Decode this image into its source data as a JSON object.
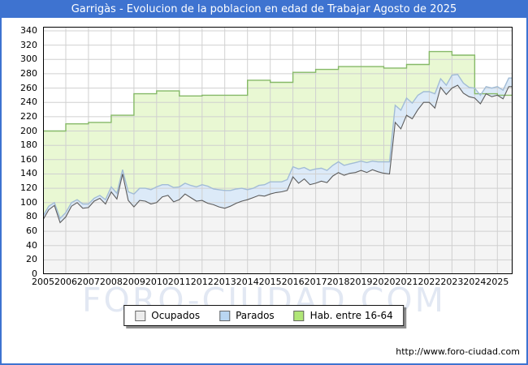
{
  "window": {
    "title": "Garrigàs - Evolucion de la poblacion en edad de Trabajar Agosto de 2025",
    "titlebar_color": "#3e73d0",
    "border_color": "#3e73d0"
  },
  "watermark": "FORO-CIUDAD.COM",
  "watermark_color": "#e2e8f3",
  "footer": {
    "url": "http://www.foro-ciudad.com"
  },
  "legend": {
    "items": [
      {
        "label": "Ocupados",
        "swatch": "#ededed"
      },
      {
        "label": "Parados",
        "swatch": "#b9d6f2"
      },
      {
        "label": "Hab. entre 16-64",
        "swatch": "#b0e677"
      }
    ]
  },
  "chart_data": {
    "type": "area",
    "title": "Garrigàs - Evolucion de la poblacion en edad de Trabajar Agosto de 2025",
    "x_axis": {
      "range": [
        2005,
        2025.667
      ],
      "ticks": [
        2005,
        2006,
        2007,
        2008,
        2009,
        2010,
        2011,
        2012,
        2013,
        2014,
        2015,
        2016,
        2017,
        2018,
        2019,
        2020,
        2021,
        2022,
        2023,
        2024,
        2025
      ]
    },
    "y_axis": {
      "min": 0,
      "max": 340,
      "step": 20,
      "ticks": [
        0,
        20,
        40,
        60,
        80,
        100,
        120,
        140,
        160,
        180,
        200,
        220,
        240,
        260,
        280,
        300,
        320,
        340
      ]
    },
    "grid": true,
    "colors": {
      "grid": "#d0d0d0",
      "frame": "#000000",
      "hab_fill": "#e9f8d3",
      "hab_line": "#86b968",
      "parados_fill": "#dceaf8",
      "parados_line": "#a2bcd6",
      "ocupados_fill": "#f4f4f4",
      "ocupados_line": "#5c5c5c"
    },
    "series": [
      {
        "name": "Hab. entre 16-64",
        "style": "step-area-annual",
        "years": [
          2005,
          2006,
          2007,
          2008,
          2009,
          2010,
          2011,
          2012,
          2013,
          2014,
          2015,
          2016,
          2017,
          2018,
          2019,
          2020,
          2021,
          2022,
          2023,
          2024,
          2025
        ],
        "values": [
          200,
          210,
          212,
          222,
          252,
          256,
          249,
          250,
          250,
          271,
          268,
          282,
          286,
          290,
          290,
          288,
          293,
          311,
          306,
          252,
          250
        ]
      },
      {
        "name": "Parados",
        "style": "area-quarterly-stacked-on-ocupados",
        "start_year": 2005,
        "points_per_year": 4,
        "values": [
          5,
          5,
          4,
          6,
          6,
          5,
          4,
          6,
          5,
          4,
          4,
          6,
          7,
          8,
          6,
          12,
          18,
          17,
          18,
          20,
          22,
          17,
          15,
          20,
          18,
          15,
          17,
          20,
          22,
          24,
          22,
          24,
          25,
          22,
          20,
          18,
          14,
          13,
          14,
          16,
          17,
          15,
          14,
          15,
          14,
          20,
          16,
          20,
          20,
          18,
          17,
          15,
          15,
          14,
          13,
          14,
          13,
          14,
          12,
          14,
          16,
          17,
          24,
          26,
          24,
          22,
          20,
          15,
          15,
          20,
          12,
          13,
          18,
          15,
          14,
          13,
          14,
          12,
          10,
          12,
          12,
          12,
          12
        ]
      },
      {
        "name": "Ocupados",
        "style": "area-quarterly",
        "start_year": 2005,
        "points_per_year": 4,
        "values": [
          76,
          90,
          96,
          72,
          80,
          95,
          100,
          92,
          93,
          102,
          106,
          98,
          115,
          105,
          140,
          103,
          94,
          103,
          102,
          98,
          100,
          108,
          110,
          101,
          104,
          112,
          107,
          102,
          103,
          99,
          97,
          94,
          92,
          95,
          99,
          102,
          104,
          107,
          110,
          109,
          112,
          114,
          115,
          117,
          136,
          127,
          133,
          125,
          127,
          130,
          128,
          137,
          142,
          138,
          141,
          142,
          145,
          142,
          146,
          143,
          141,
          140,
          212,
          203,
          222,
          217,
          230,
          240,
          240,
          232,
          261,
          251,
          260,
          264,
          253,
          248,
          246,
          238,
          252,
          248,
          250,
          245,
          262
        ]
      }
    ]
  }
}
